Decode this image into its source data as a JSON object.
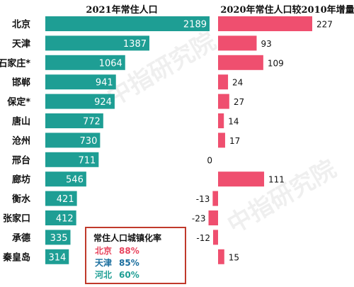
{
  "chart_data": [
    {
      "type": "bar",
      "orientation": "horizontal",
      "title": "2021年常住人口",
      "categories": [
        "北京",
        "天津",
        "石家庄*",
        "邯郸",
        "保定*",
        "唐山",
        "沧州",
        "邢台",
        "廊坊",
        "衡水",
        "张家口",
        "承德",
        "秦皇岛"
      ],
      "values": [
        2189,
        1387,
        1064,
        941,
        924,
        772,
        730,
        711,
        546,
        421,
        412,
        335,
        314
      ],
      "xlim": [
        0,
        2189
      ],
      "color": "#1e9e94",
      "grid": false
    },
    {
      "type": "bar",
      "orientation": "horizontal",
      "title": "2020年常住人口较2010年增量",
      "categories": [
        "北京",
        "天津",
        "石家庄*",
        "邯郸",
        "保定*",
        "唐山",
        "沧州",
        "邢台",
        "廊坊",
        "衡水",
        "张家口",
        "承德",
        "秦皇岛"
      ],
      "values": [
        227,
        93,
        109,
        24,
        27,
        14,
        17,
        0,
        111,
        -13,
        -23,
        -12,
        15
      ],
      "xlim": [
        -23,
        227
      ],
      "color": "#ef4f6f",
      "grid": false
    }
  ],
  "legend_box": {
    "title": "常住人口城镇化率",
    "rows": [
      {
        "label": "北京",
        "value": "88%",
        "color": "#e8455e"
      },
      {
        "label": "天津",
        "value": "85%",
        "color": "#1a6e9e"
      },
      {
        "label": "河北",
        "value": "60%",
        "color": "#1e9e94"
      }
    ],
    "border_color": "#c0392b"
  },
  "watermark": "中指研究院"
}
